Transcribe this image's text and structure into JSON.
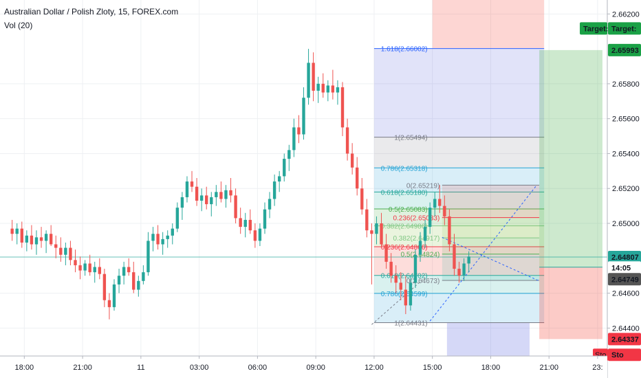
{
  "header": {
    "symbol_line": "Australian Dollar / Polish Zloty, 15, FOREX.com",
    "volume_line": "Vol (20)"
  },
  "price_axis": {
    "ticks": [
      "2.66200",
      "2.65800",
      "2.65600",
      "2.65400",
      "2.65200",
      "2.65000",
      "2.64600",
      "2.64400"
    ],
    "tick_values": [
      2.662,
      2.658,
      2.656,
      2.654,
      2.652,
      2.65,
      2.646,
      2.644
    ],
    "badges": [
      {
        "text": "Target:",
        "value": 2.66117,
        "color": "#1aa146"
      },
      {
        "text": "2.65993",
        "value": 2.65993,
        "color": "#1aa146"
      },
      {
        "text": "2.64807",
        "value": 2.64807,
        "color": "#26a69a"
      },
      {
        "text": "14:05",
        "value": 2.64747,
        "color": "#ffffff"
      },
      {
        "text": "2.64749",
        "value": 2.6468,
        "color": "#555555"
      },
      {
        "text": "2.64337",
        "value": 2.64337,
        "color": "#f23645"
      },
      {
        "text": "Sto",
        "value": 2.64247,
        "color": "#f23645"
      }
    ]
  },
  "time_axis": {
    "ticks": [
      "18:00",
      "21:00",
      "11",
      "03:00",
      "06:00",
      "09:00",
      "12:00",
      "15:00",
      "18:00",
      "21:00",
      "23:"
    ],
    "tick_bars": [
      2.5,
      14.5,
      26.5,
      38.5,
      50.5,
      62.5,
      74.5,
      86.5,
      98.5,
      110.5,
      120.5
    ]
  },
  "fib_retracement_upper": [
    {
      "label": "1.618(2.66002)",
      "value": 2.66002,
      "color": "#2962ff"
    },
    {
      "label": "1(2.65494)",
      "value": 2.65494,
      "color": "#787b86"
    },
    {
      "label": "0.786(2.65318)",
      "value": 2.65318,
      "color": "#22a2d4"
    },
    {
      "label": "0.618(2.65180)",
      "value": 2.6518,
      "color": "#26a69a"
    },
    {
      "label": "0.5(2.65083)",
      "value": 2.65083,
      "color": "#4caf50"
    },
    {
      "label": "0.382(2.64986)",
      "value": 2.64986,
      "color": "#81c784"
    },
    {
      "label": "0.236(2.64866)",
      "value": 2.64866,
      "color": "#f23645"
    },
    {
      "label": "0.618(2.64702)",
      "value": 2.64702,
      "color": "#26a69a"
    },
    {
      "label": "0.786(2.64599)",
      "value": 2.64599,
      "color": "#22a2d4"
    },
    {
      "label": "1(2.64431)",
      "value": 2.64431,
      "color": "#787b86"
    }
  ],
  "fib_retracement_lower": [
    {
      "label": "0(2.65219)",
      "value": 2.65219,
      "color": "#787b86"
    },
    {
      "label": "0.236(2.65033)",
      "value": 2.65033,
      "color": "#f23645"
    },
    {
      "label": "0.382(2.64917)",
      "value": 2.64917,
      "color": "#81c784"
    },
    {
      "label": "0.5(2.64824)",
      "value": 2.64824,
      "color": "#4caf50"
    },
    {
      "label": "0(2.64673)",
      "value": 2.64673,
      "color": "#787b86"
    }
  ],
  "chart_data": {
    "type": "candlestick",
    "title": "Australian Dollar / Polish Zloty, 15, FOREX.com",
    "ylim": [
      2.6424,
      2.6628
    ],
    "x_bar_range": [
      -2.5,
      122.5
    ],
    "last_price": 2.64807,
    "position": {
      "entry": 2.64749,
      "target": 2.65993,
      "stop": 2.64337
    },
    "candles": [
      [
        2.6497,
        2.6502,
        2.649,
        2.6494
      ],
      [
        2.6494,
        2.65,
        2.6488,
        2.6497
      ],
      [
        2.6497,
        2.6501,
        2.6486,
        2.6489
      ],
      [
        2.6489,
        2.6496,
        2.6484,
        2.6493
      ],
      [
        2.6493,
        2.6499,
        2.6485,
        2.6488
      ],
      [
        2.6488,
        2.6496,
        2.6482,
        2.6492
      ],
      [
        2.6492,
        2.6498,
        2.6486,
        2.649
      ],
      [
        2.649,
        2.6496,
        2.6483,
        2.6494
      ],
      [
        2.6494,
        2.6499,
        2.6487,
        2.6488
      ],
      [
        2.6488,
        2.6493,
        2.648,
        2.6486
      ],
      [
        2.6486,
        2.6492,
        2.6478,
        2.6482
      ],
      [
        2.6482,
        2.6489,
        2.6476,
        2.6486
      ],
      [
        2.6486,
        2.649,
        2.6476,
        2.6479
      ],
      [
        2.6479,
        2.6485,
        2.6472,
        2.6476
      ],
      [
        2.6476,
        2.6481,
        2.6468,
        2.6473
      ],
      [
        2.6473,
        2.6479,
        2.647,
        2.6477
      ],
      [
        2.6477,
        2.6482,
        2.647,
        2.6472
      ],
      [
        2.6472,
        2.6478,
        2.6466,
        2.6475
      ],
      [
        2.6475,
        2.648,
        2.6468,
        2.6471
      ],
      [
        2.6471,
        2.6474,
        2.6452,
        2.6456
      ],
      [
        2.6456,
        2.646,
        2.6445,
        2.6452
      ],
      [
        2.6452,
        2.6468,
        2.645,
        2.6465
      ],
      [
        2.6465,
        2.6474,
        2.646,
        2.647
      ],
      [
        2.647,
        2.6478,
        2.6465,
        2.6475
      ],
      [
        2.6475,
        2.648,
        2.647,
        2.6472
      ],
      [
        2.6472,
        2.6478,
        2.646,
        2.6462
      ],
      [
        2.6462,
        2.647,
        2.6458,
        2.6467
      ],
      [
        2.6467,
        2.6476,
        2.6465,
        2.6472
      ],
      [
        2.6472,
        2.6495,
        2.647,
        2.649
      ],
      [
        2.649,
        2.6498,
        2.6484,
        2.6494
      ],
      [
        2.6494,
        2.6499,
        2.6485,
        2.6488
      ],
      [
        2.6488,
        2.6495,
        2.6482,
        2.6491
      ],
      [
        2.6491,
        2.6496,
        2.6486,
        2.6493
      ],
      [
        2.6493,
        2.65,
        2.6488,
        2.6497
      ],
      [
        2.6497,
        2.6512,
        2.6495,
        2.6509
      ],
      [
        2.6509,
        2.6518,
        2.6502,
        2.6515
      ],
      [
        2.6515,
        2.6527,
        2.6512,
        2.6524
      ],
      [
        2.6524,
        2.653,
        2.6518,
        2.6521
      ],
      [
        2.6521,
        2.6526,
        2.651,
        2.6513
      ],
      [
        2.6513,
        2.652,
        2.6507,
        2.6516
      ],
      [
        2.6516,
        2.6521,
        2.6508,
        2.6511
      ],
      [
        2.6511,
        2.6518,
        2.6504,
        2.6515
      ],
      [
        2.6515,
        2.6522,
        2.651,
        2.6518
      ],
      [
        2.6518,
        2.6524,
        2.6512,
        2.6514
      ],
      [
        2.6514,
        2.6522,
        2.6509,
        2.6519
      ],
      [
        2.6519,
        2.6526,
        2.6512,
        2.6516
      ],
      [
        2.6516,
        2.652,
        2.65,
        2.6503
      ],
      [
        2.6503,
        2.6509,
        2.6494,
        2.6498
      ],
      [
        2.6498,
        2.6506,
        2.6492,
        2.6502
      ],
      [
        2.6502,
        2.6508,
        2.6494,
        2.6496
      ],
      [
        2.6496,
        2.65,
        2.6486,
        2.649
      ],
      [
        2.649,
        2.65,
        2.6487,
        2.6497
      ],
      [
        2.6497,
        2.6512,
        2.6494,
        2.6508
      ],
      [
        2.6508,
        2.6518,
        2.6503,
        2.6514
      ],
      [
        2.6514,
        2.6528,
        2.651,
        2.6524
      ],
      [
        2.6524,
        2.653,
        2.6518,
        2.6527
      ],
      [
        2.6527,
        2.654,
        2.6524,
        2.6537
      ],
      [
        2.6537,
        2.6545,
        2.653,
        2.6542
      ],
      [
        2.6542,
        2.656,
        2.6538,
        2.6555
      ],
      [
        2.6555,
        2.6562,
        2.6546,
        2.6551
      ],
      [
        2.6551,
        2.6578,
        2.6548,
        2.6572
      ],
      [
        2.6572,
        2.66,
        2.6568,
        2.6592
      ],
      [
        2.6592,
        2.6598,
        2.657,
        2.6576
      ],
      [
        2.6576,
        2.6584,
        2.6569,
        2.658
      ],
      [
        2.658,
        2.6586,
        2.6572,
        2.6575
      ],
      [
        2.6575,
        2.6582,
        2.657,
        2.6579
      ],
      [
        2.6579,
        2.6588,
        2.6571,
        2.6575
      ],
      [
        2.6575,
        2.6582,
        2.6568,
        2.6578
      ],
      [
        2.6578,
        2.6581,
        2.655,
        2.6555
      ],
      [
        2.6555,
        2.656,
        2.6536,
        2.654
      ],
      [
        2.654,
        2.6546,
        2.6528,
        2.6532
      ],
      [
        2.6532,
        2.6538,
        2.6516,
        2.652
      ],
      [
        2.652,
        2.6526,
        2.6505,
        2.6508
      ],
      [
        2.6508,
        2.6514,
        2.6492,
        2.6496
      ],
      [
        2.6496,
        2.65,
        2.6465,
        2.6494
      ],
      [
        2.6494,
        2.6504,
        2.6488,
        2.65
      ],
      [
        2.65,
        2.6506,
        2.6486,
        2.6488
      ],
      [
        2.6488,
        2.6494,
        2.6474,
        2.6478
      ],
      [
        2.6478,
        2.6483,
        2.6466,
        2.647
      ],
      [
        2.647,
        2.6476,
        2.646,
        2.6466
      ],
      [
        2.6466,
        2.6472,
        2.6456,
        2.6462
      ],
      [
        2.6462,
        2.647,
        2.6448,
        2.6453
      ],
      [
        2.6453,
        2.647,
        2.645,
        2.6466
      ],
      [
        2.6466,
        2.6485,
        2.6463,
        2.6482
      ],
      [
        2.6482,
        2.6495,
        2.6478,
        2.649
      ],
      [
        2.649,
        2.6502,
        2.6486,
        2.6498
      ],
      [
        2.6498,
        2.6512,
        2.6494,
        2.6509
      ],
      [
        2.6509,
        2.6518,
        2.6504,
        2.6514
      ],
      [
        2.6514,
        2.6522,
        2.6506,
        2.651
      ],
      [
        2.651,
        2.6516,
        2.6499,
        2.6504
      ],
      [
        2.6504,
        2.6508,
        2.6484,
        2.6488
      ],
      [
        2.6488,
        2.6494,
        2.647,
        2.6474
      ],
      [
        2.6474,
        2.6478,
        2.6466,
        2.647
      ],
      [
        2.647,
        2.648,
        2.6467,
        2.6477
      ],
      [
        2.6477,
        2.6484,
        2.6472,
        2.6481
      ]
    ]
  }
}
